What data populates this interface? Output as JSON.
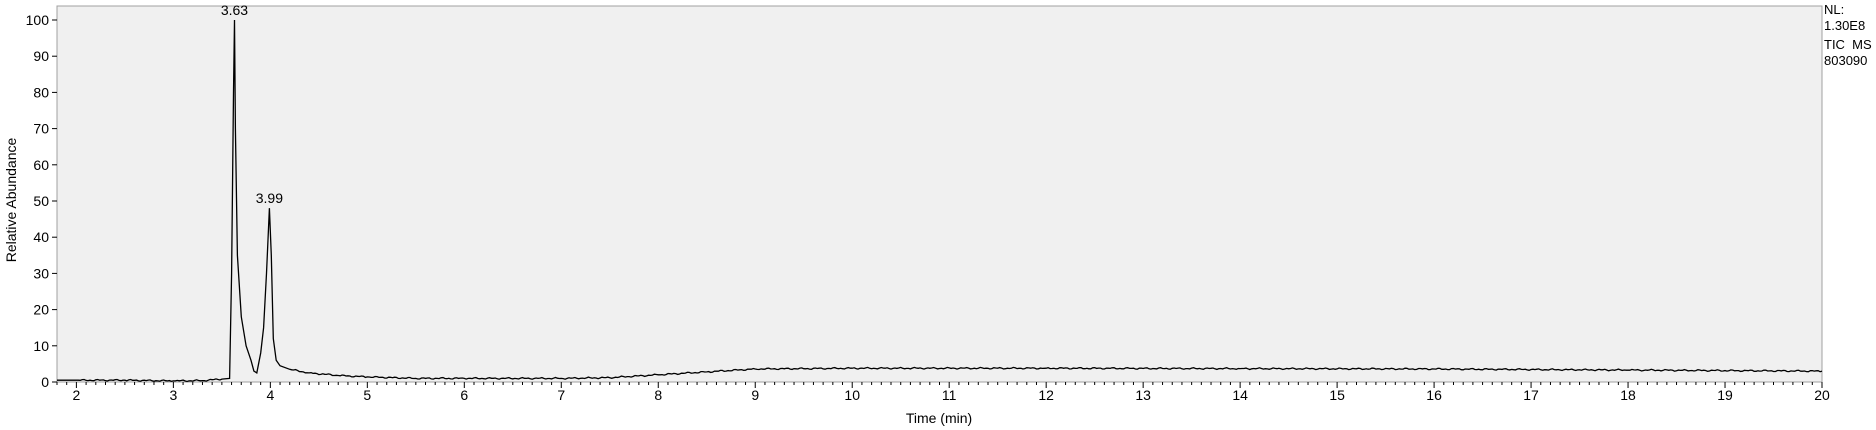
{
  "chart_data": {
    "type": "line",
    "xlabel": "Time (min)",
    "ylabel": "Relative Abundance",
    "xlim": [
      1.8,
      20
    ],
    "ylim": [
      0,
      100
    ],
    "x_ticks": [
      2,
      3,
      4,
      5,
      6,
      7,
      8,
      9,
      10,
      11,
      12,
      13,
      14,
      15,
      16,
      17,
      18,
      19,
      20
    ],
    "y_ticks": [
      0,
      10,
      20,
      30,
      40,
      50,
      60,
      70,
      80,
      90,
      100
    ],
    "grid": false,
    "background": "#f0f0f0",
    "line_color": "#000000",
    "series": [
      {
        "x": [
          1.8,
          2.0,
          2.5,
          3.0,
          3.3,
          3.5,
          3.58,
          3.6,
          3.62,
          3.63,
          3.64,
          3.66,
          3.7,
          3.75,
          3.8,
          3.83,
          3.86,
          3.9,
          3.93,
          3.96,
          3.99,
          4.01,
          4.03,
          4.06,
          4.1,
          4.2,
          4.4,
          4.7,
          5.0,
          5.5,
          6.0,
          7.0,
          7.5,
          8.0,
          8.5,
          9.0,
          10.0,
          12.0,
          14.0,
          16.0,
          18.0,
          20.0
        ],
        "y": [
          0.5,
          0.5,
          0.5,
          0.3,
          0.4,
          0.8,
          1.0,
          30,
          80,
          100,
          70,
          35,
          18,
          10,
          6,
          3,
          2.5,
          8,
          15,
          30,
          48,
          35,
          12,
          6,
          4.5,
          3.5,
          2.5,
          1.8,
          1.4,
          1.0,
          1.0,
          1.0,
          1.2,
          2.0,
          2.8,
          3.6,
          3.8,
          3.8,
          3.7,
          3.6,
          3.3,
          3.0
        ]
      }
    ],
    "annotations": [
      {
        "x": 3.63,
        "y": 100,
        "text": "3.63"
      },
      {
        "x": 3.99,
        "y": 48,
        "text": "3.99"
      }
    ]
  },
  "header": {
    "lines": [
      "NL:",
      "1.30E8",
      "TIC  MS",
      "803090"
    ]
  }
}
